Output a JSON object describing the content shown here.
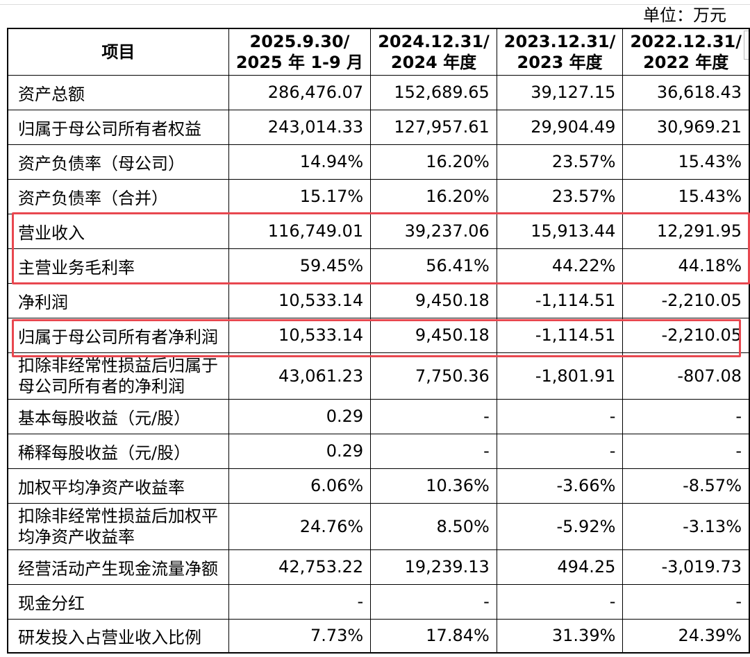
{
  "unit_label": "单位：万元",
  "header": {
    "item": "项目",
    "periods": [
      [
        "2025.9.30/",
        "2025 年 1-9 月"
      ],
      [
        "2024.12.31/",
        "2024 年度"
      ],
      [
        "2023.12.31/",
        "2023 年度"
      ],
      [
        "2022.12.31/",
        "2022 年度"
      ]
    ]
  },
  "rows": [
    {
      "label": [
        "资产总额"
      ],
      "values": [
        "286,476.07",
        "152,689.65",
        "39,127.15",
        "36,618.43"
      ]
    },
    {
      "label": [
        "归属于母公司所有者权益"
      ],
      "values": [
        "243,014.33",
        "127,957.61",
        "29,904.49",
        "30,969.21"
      ]
    },
    {
      "label": [
        "资产负债率（母公司）"
      ],
      "values": [
        "14.94%",
        "16.20%",
        "23.57%",
        "15.43%"
      ]
    },
    {
      "label": [
        "资产负债率（合并）"
      ],
      "values": [
        "15.17%",
        "16.20%",
        "23.57%",
        "15.43%"
      ]
    },
    {
      "label": [
        "营业收入"
      ],
      "values": [
        "116,749.01",
        "39,237.06",
        "15,913.44",
        "12,291.95"
      ]
    },
    {
      "label": [
        "主营业务毛利率"
      ],
      "values": [
        "59.45%",
        "56.41%",
        "44.22%",
        "44.18%"
      ]
    },
    {
      "label": [
        "净利润"
      ],
      "values": [
        "10,533.14",
        "9,450.18",
        "-1,114.51",
        "-2,210.05"
      ]
    },
    {
      "label": [
        "归属于母公司所有者净利润"
      ],
      "values": [
        "10,533.14",
        "9,450.18",
        "-1,114.51",
        "-2,210.05"
      ]
    },
    {
      "label": [
        "扣除非经常性损益后归属于",
        "母公司所有者的净利润"
      ],
      "values": [
        "43,061.23",
        "7,750.36",
        "-1,801.91",
        "-807.08"
      ]
    },
    {
      "label": [
        "基本每股收益（元/股）"
      ],
      "values": [
        "0.29",
        "-",
        "-",
        "-"
      ]
    },
    {
      "label": [
        "稀释每股收益（元/股）"
      ],
      "values": [
        "0.29",
        "-",
        "-",
        "-"
      ]
    },
    {
      "label": [
        "加权平均净资产收益率"
      ],
      "values": [
        "6.06%",
        "10.36%",
        "-3.66%",
        "-8.57%"
      ]
    },
    {
      "label": [
        "扣除非经常性损益后加权平",
        "均净资产收益率"
      ],
      "values": [
        "24.76%",
        "8.50%",
        "-5.92%",
        "-3.13%"
      ]
    },
    {
      "label": [
        "经营活动产生现金流量净额"
      ],
      "values": [
        "42,753.22",
        "19,239.13",
        "494.25",
        "-3,019.73"
      ]
    },
    {
      "label": [
        "现金分红"
      ],
      "values": [
        "-",
        "-",
        "-",
        "-"
      ]
    },
    {
      "label": [
        "研发投入占营业收入比例"
      ],
      "values": [
        "7.73%",
        "17.84%",
        "31.39%",
        "24.39%"
      ]
    }
  ],
  "highlight_colors": {
    "box": "#e8474f"
  }
}
